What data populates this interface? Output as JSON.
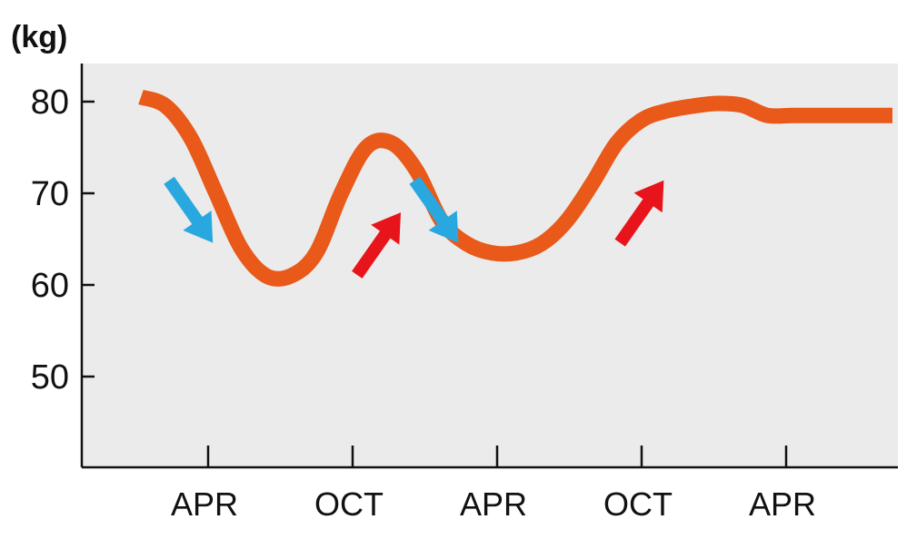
{
  "chart_data": {
    "type": "line",
    "ylabel": "(kg)",
    "ylim": [
      40,
      84
    ],
    "yticks": [
      50,
      60,
      70,
      80
    ],
    "xticks": [
      "APR",
      "OCT",
      "APR",
      "OCT",
      "APR"
    ],
    "xlim": [
      0,
      30
    ],
    "grid": false,
    "series": [
      {
        "x": [
          0,
          1,
          2,
          3,
          4,
          5,
          6,
          7,
          8,
          9,
          10,
          11,
          12,
          13,
          14,
          15,
          16,
          17,
          18,
          19,
          20,
          21,
          22,
          23,
          24,
          25,
          26,
          27,
          28,
          29,
          30
        ],
        "values": [
          80.5,
          79.5,
          76,
          70,
          64,
          61,
          61,
          63.5,
          70,
          75,
          75.5,
          72.5,
          67,
          64.5,
          63.5,
          63.5,
          64.5,
          67,
          71,
          75.5,
          78,
          79,
          79.5,
          79.8,
          79.6,
          78.5,
          78.5,
          78.5,
          78.5,
          78.5,
          78.5
        ],
        "color": "#e8591a"
      }
    ],
    "annotations": [
      {
        "type": "arrow",
        "direction": "down",
        "color": "#29a8e0",
        "x": 2,
        "y": 68
      },
      {
        "type": "arrow",
        "direction": "up",
        "color": "#e8141b",
        "x": 9.5,
        "y": 64.5
      },
      {
        "type": "arrow",
        "direction": "down",
        "color": "#29a8e0",
        "x": 11.8,
        "y": 68
      },
      {
        "type": "arrow",
        "direction": "up",
        "color": "#e8141b",
        "x": 20,
        "y": 68
      }
    ],
    "background": "#ebebeb",
    "axis_color": "#111111"
  }
}
